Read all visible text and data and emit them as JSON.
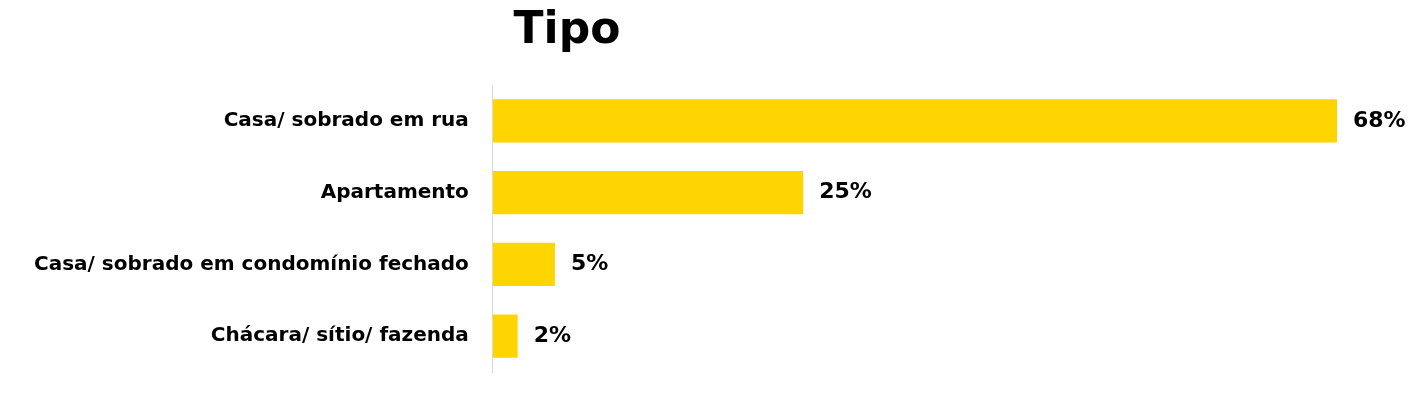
{
  "chart_data": {
    "type": "bar",
    "title": "Tipo",
    "orientation": "horizontal",
    "categories": [
      "Casa/ sobrado em rua",
      "Apartamento",
      "Casa/ sobrado em condomínio fechado",
      "Chácara/ sítio/ fazenda"
    ],
    "values": [
      68,
      25,
      5,
      2
    ],
    "value_labels": [
      "68%",
      "25%",
      "5%",
      "2%"
    ],
    "color": "#ffd500",
    "legend": false
  }
}
